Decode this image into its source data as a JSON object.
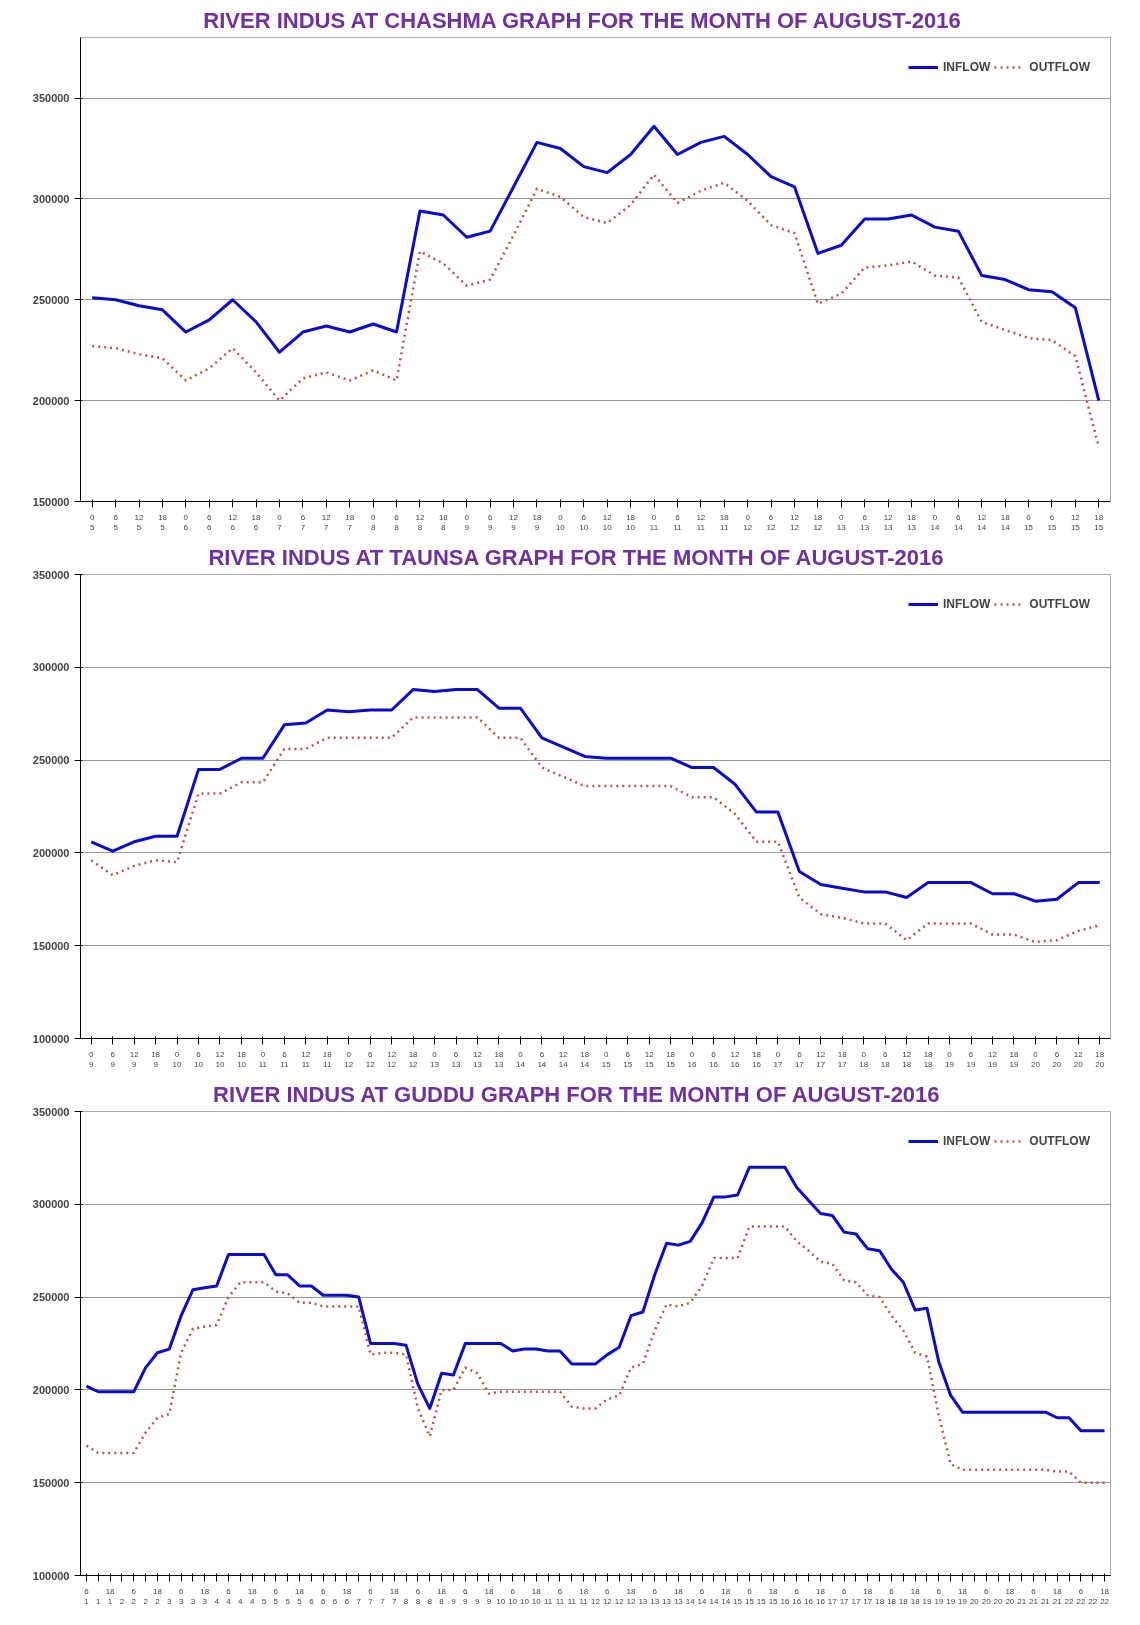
{
  "chart_data": [
    {
      "type": "line",
      "title": "RIVER  INDUS AT  CHASHMA GRAPH  FOR THE MONTH OF  AUGUST-2016",
      "categories": [
        "0\n5",
        "6\n5",
        "12\n5",
        "18\n5",
        "0\n6",
        "6\n6",
        "12\n6",
        "18\n6",
        "0\n7",
        "6\n7",
        "12\n7",
        "18\n7",
        "0\n8",
        "6\n8",
        "12\n8",
        "18\n8",
        "0\n9",
        "6\n9",
        "12\n9",
        "18\n9",
        "0\n10",
        "6\n10",
        "12\n10",
        "18\n10",
        "0\n11",
        "6\n11",
        "12\n11",
        "18\n11",
        "0\n12",
        "6\n12",
        "12\n12",
        "18\n12",
        "0\n13",
        "6\n13",
        "12\n13",
        "18\n13",
        "0\n14",
        "6\n14",
        "12\n14",
        "18\n14",
        "0\n15",
        "6\n15",
        "12\n15",
        "18\n15"
      ],
      "series": [
        {
          "name": "INFLOW",
          "color": "#0a0ad0",
          "line_style": "solid",
          "values": [
            251000,
            250000,
            247000,
            245000,
            234000,
            240000,
            250000,
            239000,
            224000,
            234000,
            237000,
            234000,
            238000,
            234000,
            294000,
            292000,
            281000,
            284000,
            306000,
            328000,
            325000,
            316000,
            313000,
            322000,
            336000,
            322000,
            328000,
            331000,
            322000,
            311000,
            306000,
            273000,
            277000,
            290000,
            290000,
            292000,
            286000,
            284000,
            262000,
            260000,
            255000,
            254000,
            246000,
            200000
          ]
        },
        {
          "name": "OUTFLOW",
          "color": "#c0504d",
          "line_style": "dotted",
          "values": [
            227000,
            226000,
            223000,
            221000,
            210000,
            216000,
            226000,
            214000,
            200000,
            211000,
            214000,
            210000,
            215000,
            210000,
            274000,
            268000,
            257000,
            260000,
            282000,
            305000,
            301000,
            291000,
            288000,
            297000,
            312000,
            298000,
            304000,
            308000,
            299000,
            287000,
            283000,
            248000,
            253000,
            266000,
            267000,
            269000,
            262000,
            261000,
            239000,
            235000,
            231000,
            230000,
            222000,
            177000
          ]
        }
      ],
      "ylim": [
        150000,
        380000
      ],
      "yticks": [
        150000,
        200000,
        250000,
        300000,
        350000
      ],
      "grid": "y",
      "legend": "top right"
    },
    {
      "type": "line",
      "title": "RIVER  INDUS  AT  TAUNSA  GRAPH  FOR THE MONTH OF  AUGUST-2016",
      "categories": [
        "0\n9",
        "6\n9",
        "12\n9",
        "18\n9",
        "0\n10",
        "6\n10",
        "12\n10",
        "18\n10",
        "0\n11",
        "6\n11",
        "12\n11",
        "18\n11",
        "0\n12",
        "6\n12",
        "12\n12",
        "18\n12",
        "0\n13",
        "6\n13",
        "12\n13",
        "18\n13",
        "0\n14",
        "6\n14",
        "12\n14",
        "18\n14",
        "0\n15",
        "6\n15",
        "12\n15",
        "18\n15",
        "0\n16",
        "6\n16",
        "12\n16",
        "18\n16",
        "0\n17",
        "6\n17",
        "12\n17",
        "18\n17",
        "0\n18",
        "6\n18",
        "12\n18",
        "18\n18",
        "0\n19",
        "6\n19",
        "12\n19",
        "18\n19",
        "0\n20",
        "6\n20",
        "12\n20",
        "18\n20"
      ],
      "series": [
        {
          "name": "INFLOW",
          "color": "#0a0ad0",
          "line_style": "solid",
          "values": [
            206000,
            201000,
            206000,
            209000,
            209000,
            245000,
            245000,
            251000,
            251000,
            269000,
            270000,
            277000,
            276000,
            277000,
            277000,
            288000,
            287000,
            288000,
            288000,
            278000,
            278000,
            262000,
            257000,
            252000,
            251000,
            251000,
            251000,
            251000,
            246000,
            246000,
            237000,
            222000,
            222000,
            190000,
            183000,
            181000,
            179000,
            179000,
            176000,
            184000,
            184000,
            184000,
            178000,
            178000,
            174000,
            175000,
            184000,
            184000
          ]
        },
        {
          "name": "OUTFLOW",
          "color": "#c0504d",
          "line_style": "dotted",
          "values": [
            196000,
            188000,
            193000,
            196000,
            195000,
            232000,
            232000,
            238000,
            238000,
            256000,
            256000,
            262000,
            262000,
            262000,
            262000,
            273000,
            273000,
            273000,
            273000,
            262000,
            262000,
            246000,
            241000,
            236000,
            236000,
            236000,
            236000,
            236000,
            230000,
            230000,
            221000,
            206000,
            206000,
            176000,
            167000,
            165000,
            162000,
            162000,
            153000,
            162000,
            162000,
            162000,
            156000,
            156000,
            152000,
            153000,
            158000,
            161000
          ]
        }
      ],
      "ylim": [
        100000,
        350000
      ],
      "yticks": [
        100000,
        150000,
        200000,
        250000,
        300000,
        350000
      ],
      "grid": "y",
      "legend": "top right"
    },
    {
      "type": "line",
      "title": "RIVER  INDUS  AT  GUDDU  GRAPH  FOR THE MONTH OF  AUGUST-2016",
      "categories": [
        "6\n1",
        "\n1",
        "18\n1",
        "\n2",
        "6\n2",
        "\n2",
        "18\n2",
        "\n3",
        "6\n3",
        "\n3",
        "18\n3",
        "\n4",
        "6\n4",
        "\n4",
        "18\n4",
        "\n5",
        "6\n5",
        "\n5",
        "18\n5",
        "\n6",
        "6\n6",
        "\n6",
        "18\n6",
        "\n7",
        "6\n7",
        "\n7",
        "18\n7",
        "\n8",
        "6\n8",
        "\n8",
        "18\n8",
        "\n9",
        "6\n9",
        "\n9",
        "18\n9",
        "\n10",
        "6\n10",
        "\n10",
        "18\n10",
        "\n11",
        "6\n11",
        "\n11",
        "18\n11",
        "\n12",
        "6\n12",
        "\n12",
        "18\n12",
        "\n13",
        "6\n13",
        "\n13",
        "18\n13",
        "\n14",
        "6\n14",
        "\n14",
        "18\n14",
        "\n15",
        "6\n15",
        "\n15",
        "18\n15",
        "\n16",
        "6\n16",
        "\n16",
        "18\n16",
        "\n17",
        "6\n17",
        "\n17",
        "18\n17",
        "\n18",
        "6\n18",
        "\n18",
        "18\n18",
        "\n19",
        "6\n19",
        "\n19",
        "18\n19",
        "\n20",
        "6\n20",
        "\n20",
        "18\n20",
        "\n21",
        "6\n21",
        "\n21",
        "18\n21",
        "\n22",
        "6\n22",
        "\n22",
        "18\n22"
      ],
      "series": [
        {
          "name": "INFLOW",
          "color": "#0a0ad0",
          "line_style": "solid",
          "values": [
            202000,
            199000,
            199000,
            199000,
            199000,
            212000,
            220000,
            222000,
            240000,
            254000,
            255000,
            256000,
            273000,
            273000,
            273000,
            273000,
            262000,
            262000,
            256000,
            256000,
            251000,
            251000,
            251000,
            250000,
            225000,
            225000,
            225000,
            224000,
            203000,
            190000,
            209000,
            208000,
            225000,
            225000,
            225000,
            225000,
            221000,
            222000,
            222000,
            221000,
            221000,
            214000,
            214000,
            214000,
            219000,
            223000,
            240000,
            242000,
            262000,
            279000,
            278000,
            280000,
            290000,
            304000,
            304000,
            305000,
            320000,
            320000,
            320000,
            320000,
            309000,
            302000,
            295000,
            294000,
            285000,
            284000,
            276000,
            275000,
            265000,
            258000,
            243000,
            244000,
            215000,
            197000,
            188000,
            188000,
            188000,
            188000,
            188000,
            188000,
            188000,
            188000,
            185000,
            185000,
            178000,
            178000,
            178000
          ]
        },
        {
          "name": "OUTFLOW",
          "color": "#c0504d",
          "line_style": "dotted",
          "values": [
            170000,
            166000,
            166000,
            166000,
            166000,
            177000,
            185000,
            187000,
            220000,
            233000,
            234000,
            235000,
            250000,
            258000,
            258000,
            258000,
            253000,
            252000,
            247000,
            247000,
            245000,
            245000,
            245000,
            245000,
            219000,
            220000,
            220000,
            219000,
            190000,
            175000,
            200000,
            200000,
            212000,
            209000,
            198000,
            199000,
            199000,
            199000,
            199000,
            199000,
            199000,
            191000,
            190000,
            190000,
            195000,
            197000,
            212000,
            214000,
            232000,
            246000,
            245000,
            247000,
            256000,
            271000,
            271000,
            271000,
            288000,
            288000,
            288000,
            288000,
            280000,
            275000,
            269000,
            268000,
            259000,
            258000,
            251000,
            250000,
            240000,
            232000,
            220000,
            218000,
            186000,
            160000,
            157000,
            157000,
            157000,
            157000,
            157000,
            157000,
            157000,
            157000,
            156000,
            156000,
            150000,
            150000,
            150000
          ]
        }
      ],
      "ylim": [
        100000,
        350000
      ],
      "yticks": [
        100000,
        150000,
        200000,
        250000,
        300000,
        350000
      ],
      "grid": "y",
      "legend": "top right"
    }
  ]
}
